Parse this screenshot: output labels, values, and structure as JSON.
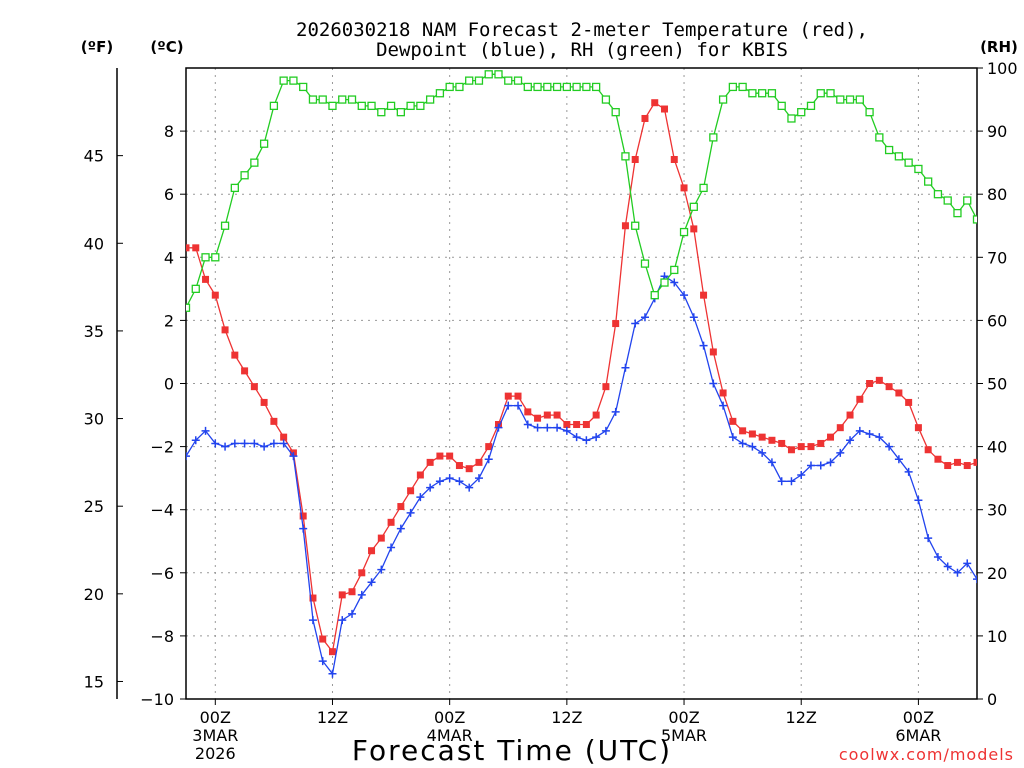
{
  "chart_data": {
    "type": "line",
    "title_line1": "2026030218 NAM Forecast 2-meter Temperature (red),",
    "title_line2": "Dewpoint (blue), RH (green) for KBIS",
    "xlabel": "Forecast Time (UTC)",
    "watermark": "coolwx.com/models",
    "unit_label_f": "(ºF)",
    "unit_label_c": "(ºC)",
    "unit_label_rh": "(RH)",
    "x_hours": [
      -6,
      42
    ],
    "x_ticks": [
      {
        "hour": 0,
        "label": "00Z",
        "sub1": "3MAR",
        "sub2": "2026"
      },
      {
        "hour": 12,
        "label": "12Z",
        "sub1": "",
        "sub2": ""
      },
      {
        "hour": 24,
        "label": "00Z",
        "sub1": "4MAR",
        "sub2": ""
      },
      {
        "hour": 36,
        "label": "12Z",
        "sub1": "",
        "sub2": ""
      },
      {
        "hour": 48,
        "label": "00Z",
        "sub1": "5MAR",
        "sub2": ""
      },
      {
        "hour": 60,
        "label": "12Z",
        "sub1": "",
        "sub2": ""
      },
      {
        "hour": 72,
        "label": "00Z",
        "sub1": "6MAR",
        "sub2": ""
      }
    ],
    "x_range_hours": [
      -3,
      78
    ],
    "celsius_range": [
      -10,
      10
    ],
    "celsius_ticks": [
      "−10",
      "−8",
      "−6",
      "−4",
      "−2",
      "0",
      "2",
      "4",
      "6",
      "8"
    ],
    "celsius_tick_values": [
      -10,
      -8,
      -6,
      -4,
      -2,
      0,
      2,
      4,
      6,
      8
    ],
    "fahrenheit_ticks": [
      "15",
      "20",
      "25",
      "30",
      "35",
      "40",
      "45"
    ],
    "fahrenheit_tick_values": [
      15,
      20,
      25,
      30,
      35,
      40,
      45
    ],
    "rh_range": [
      0,
      100
    ],
    "rh_ticks": [
      "0",
      "10",
      "20",
      "30",
      "40",
      "50",
      "60",
      "70",
      "80",
      "90",
      "100"
    ],
    "rh_tick_values": [
      0,
      10,
      20,
      30,
      40,
      50,
      60,
      70,
      80,
      90,
      100
    ],
    "series": [
      {
        "name": "Temperature",
        "color": "#ee3333",
        "marker": "filled-square",
        "axis": "celsius",
        "values": [
          [
            -6,
            0.4
          ],
          [
            -5,
            2.1
          ],
          [
            -4,
            3.5
          ],
          [
            -3,
            4.3
          ],
          [
            -2,
            4.3
          ],
          [
            -1,
            3.3
          ],
          [
            0,
            2.8
          ],
          [
            1,
            1.7
          ],
          [
            2,
            0.9
          ],
          [
            3,
            0.4
          ],
          [
            4,
            -0.1
          ],
          [
            5,
            -0.6
          ],
          [
            6,
            -1.2
          ],
          [
            7,
            -1.7
          ],
          [
            8,
            -2.2
          ],
          [
            9,
            -4.2
          ],
          [
            10,
            -6.8
          ],
          [
            11,
            -8.1
          ],
          [
            12,
            -8.5
          ],
          [
            13,
            -6.7
          ],
          [
            14,
            -6.6
          ],
          [
            15,
            -6.0
          ],
          [
            16,
            -5.3
          ],
          [
            17,
            -4.9
          ],
          [
            18,
            -4.4
          ],
          [
            19,
            -3.9
          ],
          [
            20,
            -3.4
          ],
          [
            21,
            -2.9
          ],
          [
            22,
            -2.5
          ],
          [
            23,
            -2.3
          ],
          [
            24,
            -2.3
          ],
          [
            25,
            -2.6
          ],
          [
            26,
            -2.7
          ],
          [
            27,
            -2.5
          ],
          [
            28,
            -2.0
          ],
          [
            29,
            -1.3
          ],
          [
            30,
            -0.4
          ],
          [
            31,
            -0.4
          ],
          [
            32,
            -0.9
          ],
          [
            33,
            -1.1
          ],
          [
            34,
            -1.0
          ],
          [
            35,
            -1.0
          ],
          [
            36,
            -1.3
          ],
          [
            37,
            -1.3
          ],
          [
            38,
            -1.3
          ],
          [
            39,
            -1.0
          ],
          [
            40,
            -0.1
          ],
          [
            41,
            1.9
          ],
          [
            42,
            5.0
          ],
          [
            43,
            7.1
          ],
          [
            44,
            8.4
          ],
          [
            45,
            8.9
          ],
          [
            46,
            8.7
          ],
          [
            47,
            7.1
          ],
          [
            48,
            6.2
          ],
          [
            49,
            4.9
          ],
          [
            50,
            2.8
          ],
          [
            51,
            1.0
          ],
          [
            52,
            -0.3
          ],
          [
            53,
            -1.2
          ],
          [
            54,
            -1.5
          ],
          [
            55,
            -1.6
          ],
          [
            56,
            -1.7
          ],
          [
            57,
            -1.8
          ],
          [
            58,
            -1.9
          ],
          [
            59,
            -2.1
          ],
          [
            60,
            -2.0
          ],
          [
            61,
            -2.0
          ],
          [
            62,
            -1.9
          ],
          [
            63,
            -1.7
          ],
          [
            64,
            -1.4
          ],
          [
            65,
            -1.0
          ],
          [
            66,
            -0.5
          ],
          [
            67,
            0.0
          ],
          [
            68,
            0.1
          ],
          [
            69,
            -0.1
          ],
          [
            70,
            -0.3
          ],
          [
            71,
            -0.6
          ],
          [
            72,
            -1.4
          ],
          [
            73,
            -2.1
          ],
          [
            74,
            -2.4
          ],
          [
            75,
            -2.6
          ],
          [
            76,
            -2.5
          ],
          [
            77,
            -2.6
          ],
          [
            78,
            -2.5
          ]
        ]
      },
      {
        "name": "Dewpoint",
        "color": "#2244ee",
        "marker": "plus",
        "axis": "celsius",
        "values": [
          [
            -6,
            -5.2
          ],
          [
            -5,
            -4.2
          ],
          [
            -4,
            -3.1
          ],
          [
            -3,
            -2.3
          ],
          [
            -2,
            -1.8
          ],
          [
            -1,
            -1.5
          ],
          [
            0,
            -1.9
          ],
          [
            1,
            -2.0
          ],
          [
            2,
            -1.9
          ],
          [
            3,
            -1.9
          ],
          [
            4,
            -1.9
          ],
          [
            5,
            -2.0
          ],
          [
            6,
            -1.9
          ],
          [
            7,
            -1.9
          ],
          [
            8,
            -2.3
          ],
          [
            9,
            -4.6
          ],
          [
            10,
            -7.5
          ],
          [
            11,
            -8.8
          ],
          [
            12,
            -9.2
          ],
          [
            13,
            -7.5
          ],
          [
            14,
            -7.3
          ],
          [
            15,
            -6.7
          ],
          [
            16,
            -6.3
          ],
          [
            17,
            -5.9
          ],
          [
            18,
            -5.2
          ],
          [
            19,
            -4.6
          ],
          [
            20,
            -4.1
          ],
          [
            21,
            -3.6
          ],
          [
            22,
            -3.3
          ],
          [
            23,
            -3.1
          ],
          [
            24,
            -3.0
          ],
          [
            25,
            -3.1
          ],
          [
            26,
            -3.3
          ],
          [
            27,
            -3.0
          ],
          [
            28,
            -2.4
          ],
          [
            29,
            -1.4
          ],
          [
            30,
            -0.7
          ],
          [
            31,
            -0.7
          ],
          [
            32,
            -1.3
          ],
          [
            33,
            -1.4
          ],
          [
            34,
            -1.4
          ],
          [
            35,
            -1.4
          ],
          [
            36,
            -1.5
          ],
          [
            37,
            -1.7
          ],
          [
            38,
            -1.8
          ],
          [
            39,
            -1.7
          ],
          [
            40,
            -1.5
          ],
          [
            41,
            -0.9
          ],
          [
            42,
            0.5
          ],
          [
            43,
            1.9
          ],
          [
            44,
            2.1
          ],
          [
            45,
            2.7
          ],
          [
            46,
            3.4
          ],
          [
            47,
            3.2
          ],
          [
            48,
            2.8
          ],
          [
            49,
            2.1
          ],
          [
            50,
            1.2
          ],
          [
            51,
            0.0
          ],
          [
            52,
            -0.7
          ],
          [
            53,
            -1.7
          ],
          [
            54,
            -1.9
          ],
          [
            55,
            -2.0
          ],
          [
            56,
            -2.2
          ],
          [
            57,
            -2.5
          ],
          [
            58,
            -3.1
          ],
          [
            59,
            -3.1
          ],
          [
            60,
            -2.9
          ],
          [
            61,
            -2.6
          ],
          [
            62,
            -2.6
          ],
          [
            63,
            -2.5
          ],
          [
            64,
            -2.2
          ],
          [
            65,
            -1.8
          ],
          [
            66,
            -1.5
          ],
          [
            67,
            -1.6
          ],
          [
            68,
            -1.7
          ],
          [
            69,
            -2.0
          ],
          [
            70,
            -2.4
          ],
          [
            71,
            -2.8
          ],
          [
            72,
            -3.7
          ],
          [
            73,
            -4.9
          ],
          [
            74,
            -5.5
          ],
          [
            75,
            -5.8
          ],
          [
            76,
            -6.0
          ],
          [
            77,
            -5.7
          ],
          [
            78,
            -6.2
          ]
        ]
      },
      {
        "name": "RH",
        "color": "#22cc22",
        "marker": "open-square",
        "axis": "rh",
        "values": [
          [
            -6,
            66
          ],
          [
            -5,
            63
          ],
          [
            -4,
            62
          ],
          [
            -3,
            62
          ],
          [
            -2,
            65
          ],
          [
            -1,
            70
          ],
          [
            0,
            70
          ],
          [
            1,
            75
          ],
          [
            2,
            81
          ],
          [
            3,
            83
          ],
          [
            4,
            85
          ],
          [
            5,
            88
          ],
          [
            6,
            94
          ],
          [
            7,
            98
          ],
          [
            8,
            98
          ],
          [
            9,
            97
          ],
          [
            10,
            95
          ],
          [
            11,
            95
          ],
          [
            12,
            94
          ],
          [
            13,
            95
          ],
          [
            14,
            95
          ],
          [
            15,
            94
          ],
          [
            16,
            94
          ],
          [
            17,
            93
          ],
          [
            18,
            94
          ],
          [
            19,
            93
          ],
          [
            20,
            94
          ],
          [
            21,
            94
          ],
          [
            22,
            95
          ],
          [
            23,
            96
          ],
          [
            24,
            97
          ],
          [
            25,
            97
          ],
          [
            26,
            98
          ],
          [
            27,
            98
          ],
          [
            28,
            99
          ],
          [
            29,
            99
          ],
          [
            30,
            98
          ],
          [
            31,
            98
          ],
          [
            32,
            97
          ],
          [
            33,
            97
          ],
          [
            34,
            97
          ],
          [
            35,
            97
          ],
          [
            36,
            97
          ],
          [
            37,
            97
          ],
          [
            38,
            97
          ],
          [
            39,
            97
          ],
          [
            40,
            95
          ],
          [
            41,
            93
          ],
          [
            42,
            86
          ],
          [
            43,
            75
          ],
          [
            44,
            69
          ],
          [
            45,
            64
          ],
          [
            46,
            66
          ],
          [
            47,
            68
          ],
          [
            48,
            74
          ],
          [
            49,
            78
          ],
          [
            50,
            81
          ],
          [
            51,
            89
          ],
          [
            52,
            95
          ],
          [
            53,
            97
          ],
          [
            54,
            97
          ],
          [
            55,
            96
          ],
          [
            56,
            96
          ],
          [
            57,
            96
          ],
          [
            58,
            94
          ],
          [
            59,
            92
          ],
          [
            60,
            93
          ],
          [
            61,
            94
          ],
          [
            62,
            96
          ],
          [
            63,
            96
          ],
          [
            64,
            95
          ],
          [
            65,
            95
          ],
          [
            66,
            95
          ],
          [
            67,
            93
          ],
          [
            68,
            89
          ],
          [
            69,
            87
          ],
          [
            70,
            86
          ],
          [
            71,
            85
          ],
          [
            72,
            84
          ],
          [
            73,
            82
          ],
          [
            74,
            80
          ],
          [
            75,
            79
          ],
          [
            76,
            77
          ],
          [
            77,
            79
          ],
          [
            78,
            76
          ]
        ]
      }
    ]
  }
}
